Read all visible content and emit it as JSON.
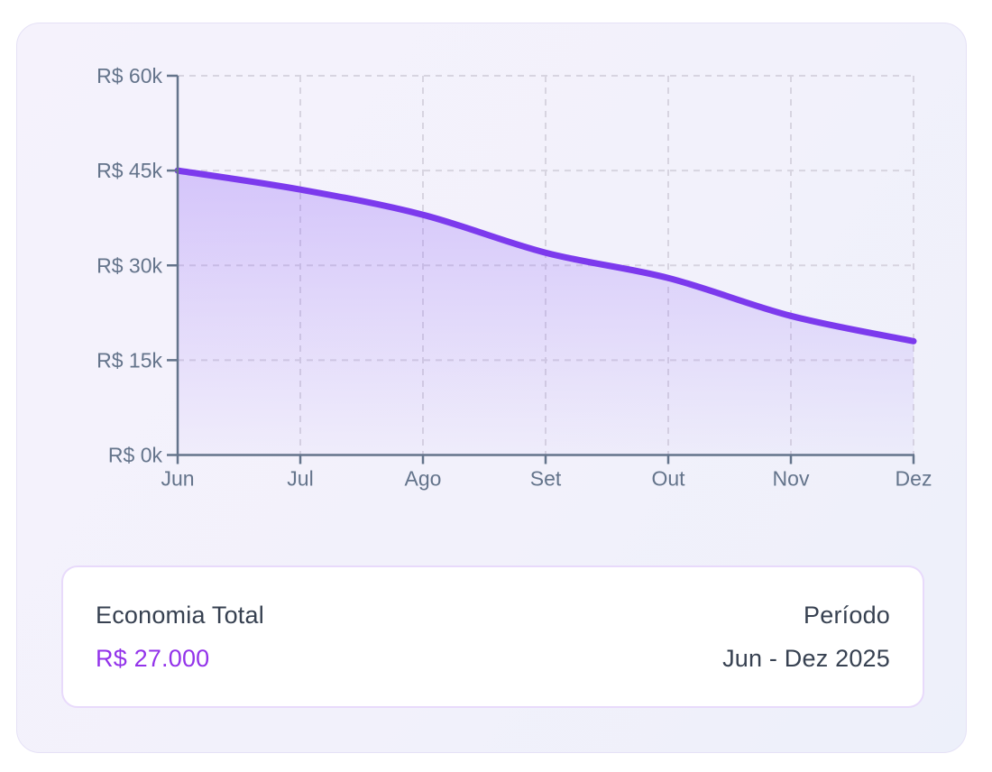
{
  "colors": {
    "page_bg": "#ffffff",
    "card_bg": "#f3f2fb",
    "card_border": "#e5e1f6",
    "line": "#7c3aed",
    "area_fill": "#8b5cf6",
    "grid": "#d7d4e0",
    "axis": "#64748b",
    "tick_text": "#64748b",
    "summary_bg": "#ffffff",
    "summary_border": "#e8dafb",
    "summary_text": "#374151",
    "accent_value": "#9333ea"
  },
  "chart_data": {
    "type": "area",
    "x": [
      "Jun",
      "Jul",
      "Ago",
      "Set",
      "Out",
      "Nov",
      "Dez"
    ],
    "values_k": [
      45,
      42,
      38,
      32,
      28,
      22,
      18
    ],
    "yticks_k": [
      0,
      15,
      30,
      45,
      60
    ],
    "ytick_labels": [
      "R$ 0k",
      "R$ 15k",
      "R$ 30k",
      "R$ 45k",
      "R$ 60k"
    ],
    "ylim_k": [
      0,
      60
    ],
    "grid": "dashed",
    "legend": "none"
  },
  "summary": {
    "total_label": "Economia Total",
    "total_value": "R$ 27.000",
    "period_label": "Período",
    "period_value": "Jun - Dez 2025"
  }
}
